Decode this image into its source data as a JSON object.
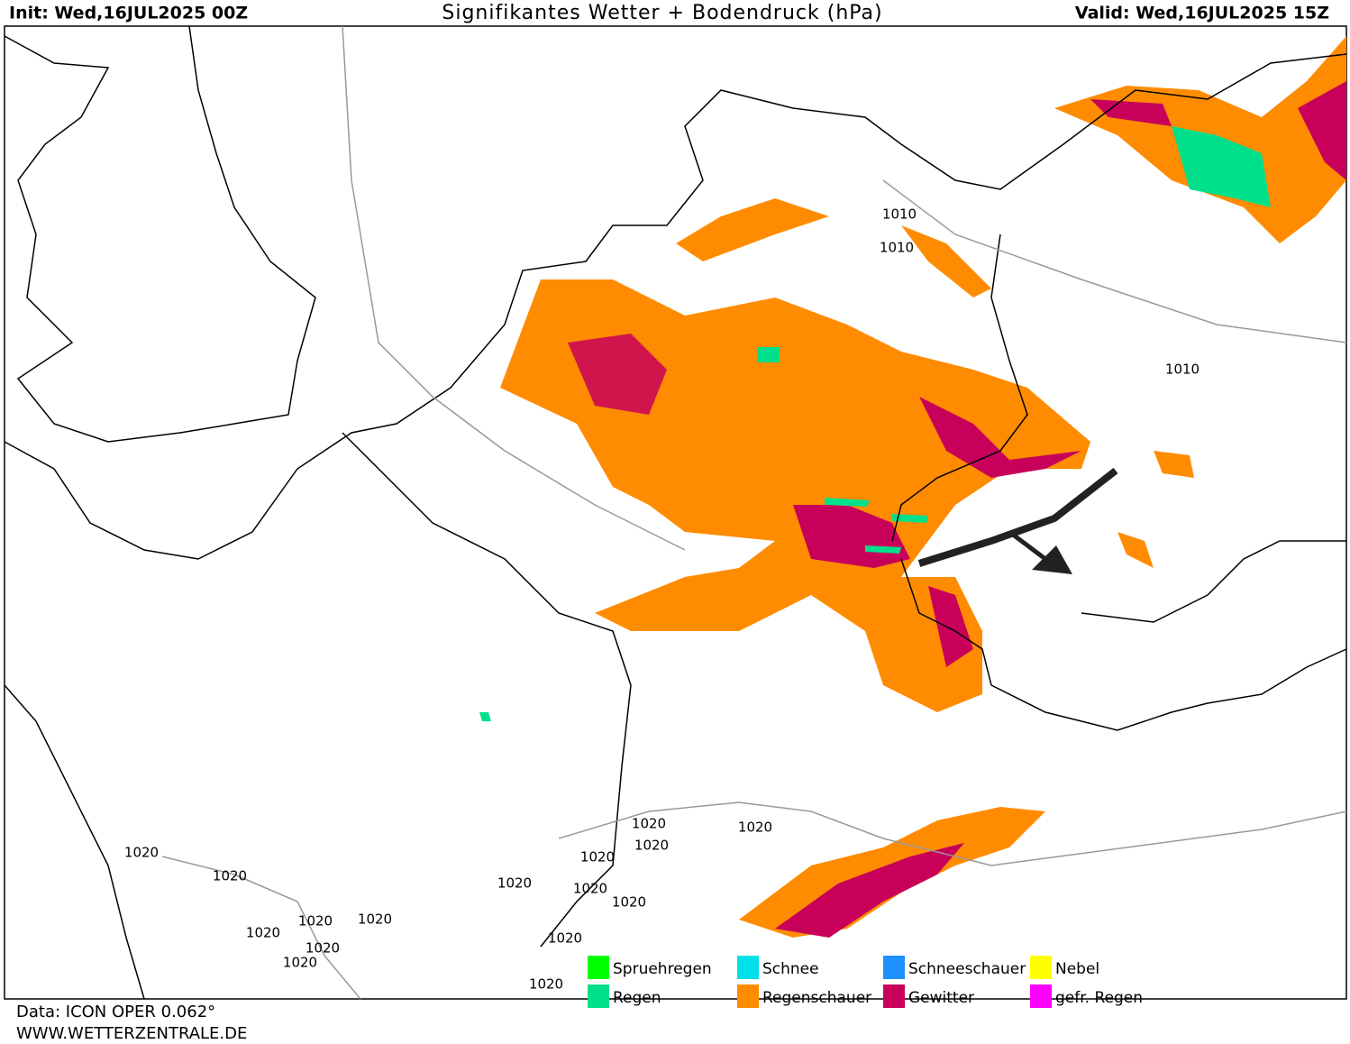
{
  "header": {
    "init": "Init: Wed,16JUL2025 00Z",
    "title": "Signifikantes Wetter +  Bodendruck (hPa)",
    "valid": "Valid: Wed,16JUL2025 15Z"
  },
  "isobar_labels": [
    "1010",
    "1010",
    "1010",
    "1020",
    "1020",
    "1020",
    "1020",
    "1020",
    "1020",
    "1020",
    "1020",
    "1020",
    "1020",
    "1020",
    "1020",
    "1020",
    "1020",
    "1020",
    "1020"
  ],
  "legend": [
    {
      "label": "Spruehregen",
      "color": "#00ff00"
    },
    {
      "label": "Regen",
      "color": "#00e08a"
    },
    {
      "label": "Schnee",
      "color": "#00e0e8"
    },
    {
      "label": "Regenschauer",
      "color": "#ff8c00"
    },
    {
      "label": "Schneeschauer",
      "color": "#1e90ff"
    },
    {
      "label": "Gewitter",
      "color": "#c8005a"
    },
    {
      "label": "Nebel",
      "color": "#ffff00"
    },
    {
      "label": "gefr. Regen",
      "color": "#ff00ff"
    }
  ],
  "footer": {
    "data": "Data: ICON OPER 0.062°",
    "url": "WWW.WETTERZENTRALE.DE"
  }
}
